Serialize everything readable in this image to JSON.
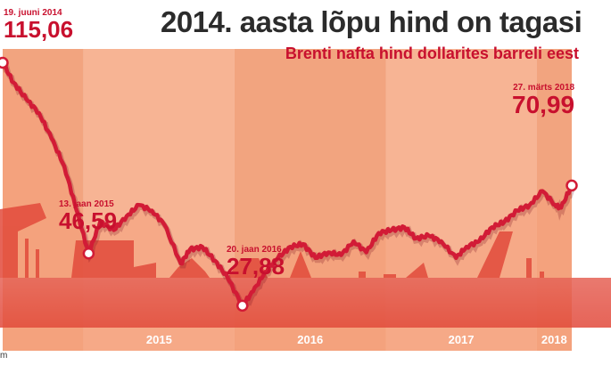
{
  "header": {
    "title": "2014. aasta lõpu hind on tagasi",
    "subtitle": "Brenti nafta hind dollarites barreli eest"
  },
  "footer": {
    "source": "m"
  },
  "colors": {
    "line": "#d21b36",
    "title": "#2b2b2b",
    "accent": "#c8102e",
    "band_light": "#f7b494",
    "band_dark": "#f2a47f"
  },
  "chart_data": {
    "type": "line",
    "title": "2014. aasta lõpu hind on tagasi",
    "subtitle": "Brenti nafta hind dollarites barreli eest",
    "xlabel": "",
    "ylabel": "",
    "x_range": [
      "2014-06-19",
      "2018-03-27"
    ],
    "ylim": [
      20,
      120
    ],
    "grid": false,
    "x_ticks": [
      "2015",
      "2016",
      "2017",
      "2018"
    ],
    "series": [
      {
        "x": [
          "2014-06-19",
          "2014-07-15",
          "2014-08-15",
          "2014-09-15",
          "2014-10-15",
          "2014-11-15",
          "2014-12-15",
          "2015-01-13",
          "2015-02-10",
          "2015-03-15",
          "2015-04-15",
          "2015-05-15",
          "2015-06-15",
          "2015-07-15",
          "2015-08-24",
          "2015-09-15",
          "2015-10-15",
          "2015-11-15",
          "2015-12-15",
          "2016-01-20",
          "2016-02-15",
          "2016-03-15",
          "2016-04-15",
          "2016-05-15",
          "2016-06-15",
          "2016-07-15",
          "2016-08-15",
          "2016-09-15",
          "2016-10-15",
          "2016-11-15",
          "2016-12-15",
          "2017-01-15",
          "2017-02-15",
          "2017-03-15",
          "2017-04-15",
          "2017-05-15",
          "2017-06-20",
          "2017-07-15",
          "2017-08-15",
          "2017-09-15",
          "2017-10-15",
          "2017-11-15",
          "2017-12-15",
          "2018-01-15",
          "2018-02-15",
          "2018-03-01",
          "2018-03-27"
        ],
        "values": [
          115.06,
          108,
          102,
          97,
          88,
          78,
          62,
          46.59,
          58,
          55,
          60,
          64,
          62,
          57,
          43,
          48,
          49,
          44,
          38,
          27.88,
          33,
          40,
          45,
          49,
          50,
          45,
          47,
          46,
          51,
          47,
          54,
          55,
          56,
          52,
          53,
          51,
          45,
          49,
          51,
          56,
          58,
          62,
          64,
          69,
          64,
          63,
          70.99
        ]
      }
    ],
    "annotations": [
      {
        "date_label": "19. juuni 2014",
        "value_label": "115,06"
      },
      {
        "date_label": "13. jaan 2015",
        "value_label": "46,59"
      },
      {
        "date_label": "20. jaan 2016",
        "value_label": "27,88"
      },
      {
        "date_label": "27. märts 2018",
        "value_label": "70,99"
      }
    ]
  }
}
